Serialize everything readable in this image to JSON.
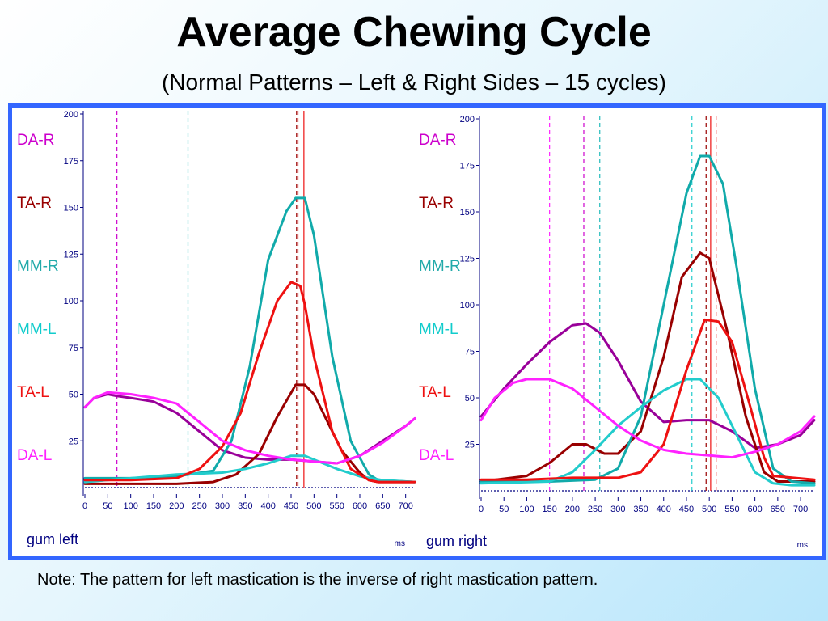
{
  "title": "Average Chewing Cycle",
  "subtitle": "(Normal Patterns – Left & Right Sides – 15 cycles)",
  "note": "Note:  The pattern for left mastication is the inverse of right mastication pattern.",
  "channels": [
    {
      "label": "DA-R",
      "color": "#cc00cc"
    },
    {
      "label": "TA-R",
      "color": "#990000"
    },
    {
      "label": "MM-R",
      "color": "#22aaaa"
    },
    {
      "label": "MM-L",
      "color": "#11cccc"
    },
    {
      "label": "TA-L",
      "color": "#ee1111"
    },
    {
      "label": "DA-L",
      "color": "#ff22ff"
    }
  ],
  "chart_data": [
    {
      "type": "line",
      "footer": "gum left",
      "unit": "ms",
      "xlim": [
        0,
        720
      ],
      "ylim": [
        0,
        200
      ],
      "yticks": [
        25,
        50,
        75,
        100,
        125,
        150,
        175,
        200
      ],
      "xticks": [
        0,
        50,
        100,
        150,
        200,
        250,
        300,
        350,
        400,
        450,
        500,
        550,
        600,
        650,
        700
      ],
      "markers": [
        {
          "x": 70,
          "color": "#cc00cc"
        },
        {
          "x": 225,
          "color": "#22bbbb"
        },
        {
          "x": 462,
          "color": "#990000"
        },
        {
          "x": 465,
          "color": "#ee1111"
        },
        {
          "x": 478,
          "color": "#ee1111",
          "solid": true
        }
      ],
      "series": [
        {
          "name": "DA-R",
          "color": "#990099",
          "x": [
            0,
            20,
            50,
            70,
            100,
            150,
            200,
            250,
            300,
            350,
            400,
            450,
            500,
            550,
            600,
            650,
            700,
            720
          ],
          "y": [
            43,
            48,
            50,
            49,
            48,
            46,
            40,
            30,
            20,
            16,
            15,
            15,
            14,
            13,
            17,
            25,
            33,
            37
          ]
        },
        {
          "name": "TA-R",
          "color": "#990000",
          "x": [
            0,
            100,
            200,
            280,
            330,
            380,
            420,
            460,
            480,
            500,
            530,
            560,
            600,
            620,
            640,
            720
          ],
          "y": [
            2,
            2,
            2,
            3,
            7,
            18,
            38,
            55,
            55,
            50,
            35,
            20,
            8,
            4,
            3,
            3
          ]
        },
        {
          "name": "MM-R",
          "color": "#11aaaa",
          "x": [
            0,
            100,
            200,
            280,
            320,
            360,
            400,
            440,
            460,
            480,
            500,
            540,
            580,
            620,
            640,
            720
          ],
          "y": [
            5,
            5,
            6,
            9,
            25,
            65,
            122,
            148,
            155,
            155,
            135,
            70,
            25,
            7,
            4,
            3
          ]
        },
        {
          "name": "MM-L",
          "color": "#22cccc",
          "x": [
            0,
            100,
            200,
            300,
            350,
            400,
            450,
            480,
            500,
            550,
            600,
            650,
            720
          ],
          "y": [
            3,
            5,
            7,
            8,
            10,
            13,
            17,
            17,
            15,
            10,
            6,
            4,
            3
          ]
        },
        {
          "name": "TA-L",
          "color": "#ee1111",
          "x": [
            0,
            100,
            200,
            250,
            300,
            340,
            380,
            420,
            450,
            470,
            480,
            500,
            540,
            580,
            620,
            640,
            720
          ],
          "y": [
            4,
            4,
            5,
            10,
            22,
            40,
            72,
            100,
            110,
            108,
            98,
            70,
            30,
            10,
            4,
            3,
            3
          ]
        },
        {
          "name": "DA-L",
          "color": "#ff22ff",
          "x": [
            0,
            20,
            50,
            100,
            150,
            200,
            250,
            300,
            350,
            400,
            450,
            500,
            550,
            600,
            650,
            700,
            720
          ],
          "y": [
            43,
            48,
            51,
            50,
            48,
            45,
            35,
            25,
            20,
            17,
            15,
            14,
            13,
            17,
            24,
            33,
            37
          ]
        }
      ]
    },
    {
      "type": "line",
      "footer": "gum right",
      "unit": "ms",
      "xlim": [
        0,
        730
      ],
      "ylim": [
        0,
        200
      ],
      "yticks": [
        25,
        50,
        75,
        100,
        125,
        150,
        175,
        200
      ],
      "xticks": [
        0,
        50,
        100,
        150,
        200,
        250,
        300,
        350,
        400,
        450,
        500,
        550,
        600,
        650,
        700
      ],
      "markers": [
        {
          "x": 150,
          "color": "#ff22ff"
        },
        {
          "x": 225,
          "color": "#cc00cc"
        },
        {
          "x": 260,
          "color": "#22bbbb"
        },
        {
          "x": 462,
          "color": "#22cccc"
        },
        {
          "x": 493,
          "color": "#990000"
        },
        {
          "x": 503,
          "color": "#ee1111",
          "solid": true
        },
        {
          "x": 515,
          "color": "#ee1111"
        }
      ],
      "series": [
        {
          "name": "DA-R",
          "color": "#990099",
          "x": [
            0,
            50,
            100,
            150,
            200,
            230,
            260,
            300,
            350,
            400,
            450,
            500,
            550,
            600,
            650,
            700,
            730
          ],
          "y": [
            40,
            55,
            68,
            80,
            89,
            90,
            85,
            70,
            48,
            37,
            38,
            38,
            32,
            23,
            25,
            30,
            38
          ]
        },
        {
          "name": "TA-R",
          "color": "#990000",
          "x": [
            0,
            100,
            150,
            200,
            230,
            270,
            300,
            350,
            400,
            440,
            480,
            500,
            540,
            580,
            620,
            650,
            730
          ],
          "y": [
            5,
            8,
            15,
            25,
            25,
            20,
            20,
            32,
            72,
            115,
            128,
            125,
            85,
            40,
            10,
            5,
            5
          ]
        },
        {
          "name": "MM-R",
          "color": "#11aaaa",
          "x": [
            0,
            150,
            250,
            300,
            350,
            400,
            450,
            480,
            500,
            530,
            560,
            600,
            640,
            680,
            730
          ],
          "y": [
            5,
            5,
            6,
            12,
            40,
            100,
            160,
            180,
            180,
            165,
            120,
            55,
            12,
            5,
            4
          ]
        },
        {
          "name": "MM-L",
          "color": "#22cccc",
          "x": [
            0,
            150,
            200,
            250,
            300,
            350,
            400,
            450,
            480,
            520,
            560,
            600,
            640,
            680,
            730
          ],
          "y": [
            4,
            5,
            10,
            22,
            35,
            45,
            54,
            60,
            60,
            50,
            30,
            10,
            4,
            3,
            3
          ]
        },
        {
          "name": "TA-L",
          "color": "#ee1111",
          "x": [
            0,
            100,
            200,
            300,
            350,
            400,
            450,
            490,
            520,
            550,
            590,
            620,
            640,
            730
          ],
          "y": [
            6,
            6,
            7,
            7,
            10,
            25,
            65,
            92,
            91,
            80,
            45,
            18,
            8,
            6
          ]
        },
        {
          "name": "DA-L",
          "color": "#ff22ff",
          "x": [
            0,
            30,
            70,
            100,
            150,
            200,
            250,
            300,
            350,
            400,
            450,
            500,
            550,
            600,
            650,
            700,
            730
          ],
          "y": [
            38,
            50,
            58,
            60,
            60,
            55,
            45,
            35,
            27,
            22,
            20,
            19,
            18,
            21,
            25,
            32,
            40
          ]
        }
      ]
    }
  ]
}
